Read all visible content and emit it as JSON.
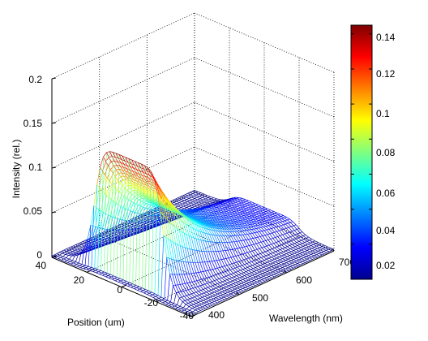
{
  "chart_data": {
    "type": "surface",
    "xlabel": "Wavelength (nm)",
    "ylabel": "Position (um)",
    "zlabel": "Intensity (rel.)",
    "x_range": [
      400,
      700
    ],
    "y_range": [
      -40,
      40
    ],
    "z_range": [
      0,
      0.2
    ],
    "x_ticks": [
      "400",
      "500",
      "600",
      "700"
    ],
    "y_ticks": [
      "-40",
      "-20",
      "0",
      "20",
      "40"
    ],
    "z_ticks": [
      "0",
      "0.05",
      "0.1",
      "0.15",
      "0.2"
    ],
    "colorbar": {
      "range": [
        0,
        0.145
      ],
      "ticks": [
        "0.02",
        "0.04",
        "0.06",
        "0.08",
        "0.1",
        "0.12",
        "0.14"
      ]
    },
    "colormap": "jet",
    "grid": true,
    "surface_profile": {
      "wavelength_edge_nm": 415,
      "peak_intensity_at_edge": 0.14,
      "intensity_at_700nm": 0.009,
      "position_half_width_um": 20
    }
  }
}
